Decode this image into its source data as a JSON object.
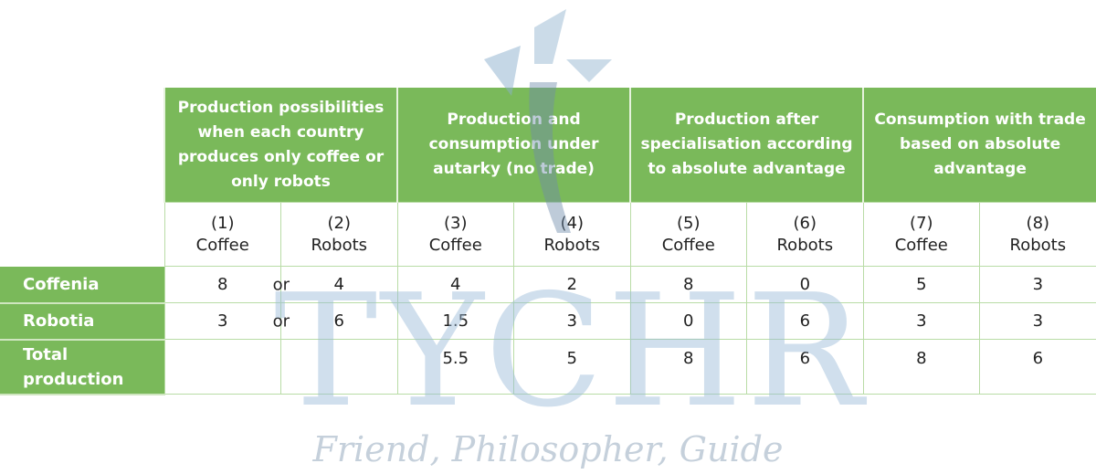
{
  "table": {
    "groups": [
      "Production possibilities when each country produces only coffee or only robots",
      "Production and consumption under autarky (no trade)",
      "Production after specialisation according to absolute advantage",
      "Consumption with trade based on absolute advantage"
    ],
    "columns": [
      {
        "num": "(1)",
        "label": "Coffee"
      },
      {
        "num": "(2)",
        "label": "Robots"
      },
      {
        "num": "(3)",
        "label": "Coffee"
      },
      {
        "num": "(4)",
        "label": "Robots"
      },
      {
        "num": "(5)",
        "label": "Coffee"
      },
      {
        "num": "(6)",
        "label": "Robots"
      },
      {
        "num": "(7)",
        "label": "Coffee"
      },
      {
        "num": "(8)",
        "label": "Robots"
      }
    ],
    "or_label": "or",
    "rows": [
      {
        "label": "Coffenia",
        "values": [
          "8",
          "4",
          "4",
          "2",
          "8",
          "0",
          "5",
          "3"
        ]
      },
      {
        "label": "Robotia",
        "values": [
          "3",
          "6",
          "1.5",
          "3",
          "0",
          "6",
          "3",
          "3"
        ]
      },
      {
        "label": "Total production",
        "values": [
          "",
          "",
          "5.5",
          "5",
          "8",
          "6",
          "8",
          "6"
        ]
      }
    ]
  },
  "watermark": {
    "brand": "TYCHR",
    "tagline": "Friend, Philosopher, Guide"
  },
  "colors": {
    "header_green": "#7ab95a",
    "grid": "#b9dca6",
    "watermark": "#96b9d7"
  }
}
